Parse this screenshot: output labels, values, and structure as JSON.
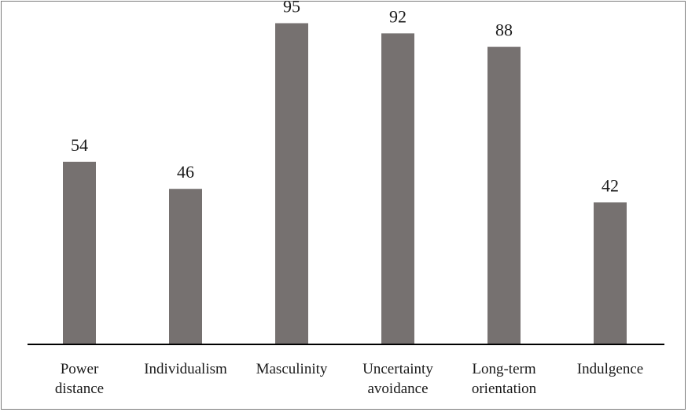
{
  "chart_data": {
    "type": "bar",
    "categories": [
      [
        "Power",
        "distance"
      ],
      [
        "Individualism"
      ],
      [
        "Masculinity"
      ],
      [
        "Uncertainty",
        "avoidance"
      ],
      [
        "Long-term",
        "orientation"
      ],
      [
        "Indulgence"
      ]
    ],
    "values": [
      54,
      46,
      95,
      92,
      88,
      42
    ],
    "data_labels": [
      "54",
      "46",
      "95",
      "92",
      "88",
      "42"
    ],
    "ylim": [
      0,
      100
    ],
    "grid": false,
    "legend": "none",
    "colors": {
      "bar": "#767170",
      "axis": "#000000",
      "border": "#7a7a7a"
    }
  }
}
